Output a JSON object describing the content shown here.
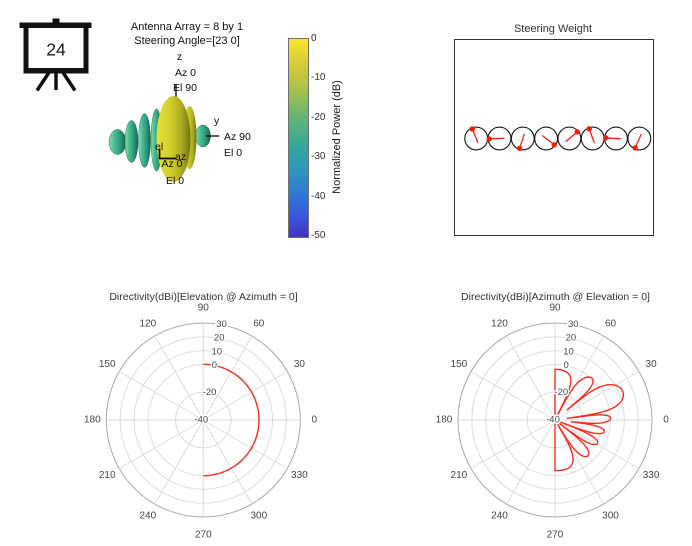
{
  "icon": {
    "number": "24"
  },
  "annotation": {
    "line1": "Antenna Array = 8 by 1",
    "line2": "Steering Angle=[23 0]"
  },
  "pattern3d": {
    "z_axis": {
      "name": "z",
      "az": "Az 0",
      "el": "El 90"
    },
    "y_axis": {
      "name": "y",
      "az": "Az 90",
      "el": "El 0"
    },
    "x_axis": {
      "az": "Az 0",
      "el": "El 0"
    },
    "mini_axis": {
      "vertical": "el",
      "horizontal": "az"
    },
    "colors": {
      "teal_lobe": "#3cb68d",
      "main_lobe_yellow": "#d2cf2c"
    }
  },
  "colorbar": {
    "label": "Normalized Power (dB)",
    "ticks": [
      "0",
      "-10",
      "-20",
      "-30",
      "-40",
      "-50"
    ],
    "top_color": "#f8e72b",
    "bottom_color": "#4233bd"
  },
  "steering": {
    "title": "Steering Weight",
    "phasor_angles_deg": [
      112,
      182,
      252,
      322,
      40,
      110,
      176,
      246
    ],
    "arrow_color": "#f51d10",
    "circle_color": "#161616"
  },
  "chart_data": [
    {
      "id": "elevation-cut",
      "type": "polar-line",
      "title": "Directivity(dBi)[Elevation @ Azimuth = 0]",
      "angle_labels": [
        "0",
        "30",
        "60",
        "90",
        "120",
        "150",
        "180",
        "210",
        "240",
        "270",
        "300",
        "330"
      ],
      "radial_ticks": [
        30,
        20,
        10,
        0,
        -20,
        -40
      ],
      "rmin": -40,
      "rmax": 30,
      "line_color": "#f23021",
      "series": {
        "model": "constant",
        "value_dbi": 0.2,
        "angle_range_deg": [
          -90,
          90
        ],
        "closed": false
      }
    },
    {
      "id": "azimuth-cut",
      "type": "polar-line",
      "title": "Directivity(dBi)[Azimuth @ Elevation = 0]",
      "angle_labels": [
        "0",
        "30",
        "60",
        "90",
        "120",
        "150",
        "180",
        "210",
        "240",
        "270",
        "300",
        "330"
      ],
      "radial_ticks": [
        30,
        20,
        10,
        0,
        -20,
        -40
      ],
      "rmin": -40,
      "rmax": 30,
      "line_color": "#f23021",
      "series": {
        "model": "uniform-linear-array-factor",
        "elements": 8,
        "spacing_wavelengths": 0.5,
        "steer_deg": 23,
        "peak_dbi": 13,
        "angle_range_deg": [
          -90,
          90
        ],
        "closed": true
      }
    }
  ]
}
